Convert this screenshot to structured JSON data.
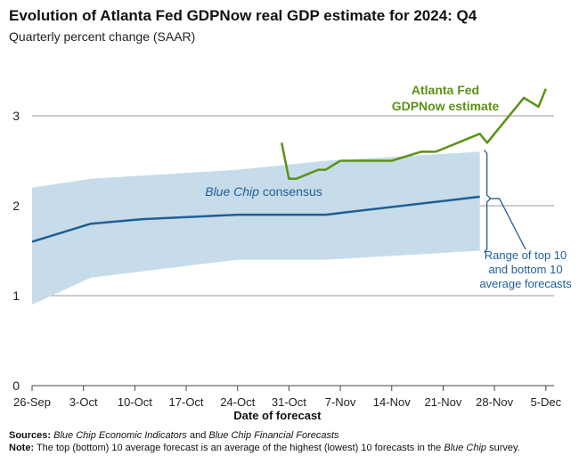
{
  "title": "Evolution of Atlanta Fed GDPNow real GDP estimate for 2024: Q4",
  "subtitle": "Quarterly percent change (SAAR)",
  "colors": {
    "gdpnow": "#5b9214",
    "bluechip": "#1f5f97",
    "band": "#c6dcea",
    "grid": "#9a9a9a",
    "annotation": "#1f5f97"
  },
  "chart_data": {
    "type": "line",
    "xlabel": "Date of forecast",
    "ylabel": "",
    "ylim": [
      0,
      3.5
    ],
    "yticks": [
      0,
      1,
      2,
      3
    ],
    "xlim": [
      "2024-09-26",
      "2024-12-06"
    ],
    "xticks": [
      {
        "date": "2024-09-26",
        "label": "26-Sep"
      },
      {
        "date": "2024-10-03",
        "label": "3-Oct"
      },
      {
        "date": "2024-10-10",
        "label": "10-Oct"
      },
      {
        "date": "2024-10-17",
        "label": "17-Oct"
      },
      {
        "date": "2024-10-24",
        "label": "24-Oct"
      },
      {
        "date": "2024-10-31",
        "label": "31-Oct"
      },
      {
        "date": "2024-11-07",
        "label": "7-Nov"
      },
      {
        "date": "2024-11-14",
        "label": "14-Nov"
      },
      {
        "date": "2024-11-21",
        "label": "21-Nov"
      },
      {
        "date": "2024-11-28",
        "label": "28-Nov"
      },
      {
        "date": "2024-12-05",
        "label": "5-Dec"
      }
    ],
    "grid": true,
    "series": [
      {
        "name": "Atlanta Fed GDPNow estimate",
        "label_lines": [
          "Atlanta Fed",
          "GDPNow estimate"
        ],
        "points": [
          [
            "2024-10-30",
            2.7
          ],
          [
            "2024-10-31",
            2.3
          ],
          [
            "2024-11-01",
            2.3
          ],
          [
            "2024-11-04",
            2.4
          ],
          [
            "2024-11-05",
            2.4
          ],
          [
            "2024-11-07",
            2.5
          ],
          [
            "2024-11-14",
            2.5
          ],
          [
            "2024-11-18",
            2.6
          ],
          [
            "2024-11-20",
            2.6
          ],
          [
            "2024-11-26",
            2.8
          ],
          [
            "2024-11-27",
            2.7
          ],
          [
            "2024-12-02",
            3.2
          ],
          [
            "2024-12-04",
            3.1
          ],
          [
            "2024-12-05",
            3.3
          ]
        ]
      },
      {
        "name": "Blue Chip consensus",
        "label_italic": "Blue Chip",
        "label_rest": " consensus",
        "points": [
          [
            "2024-09-26",
            1.6
          ],
          [
            "2024-10-04",
            1.8
          ],
          [
            "2024-10-11",
            1.85
          ],
          [
            "2024-10-24",
            1.9
          ],
          [
            "2024-11-05",
            1.9
          ],
          [
            "2024-11-26",
            2.1
          ]
        ]
      }
    ],
    "band": {
      "name": "Range of top 10 and bottom 10 average forecasts",
      "upper": [
        [
          "2024-09-26",
          2.2
        ],
        [
          "2024-10-04",
          2.3
        ],
        [
          "2024-10-24",
          2.4
        ],
        [
          "2024-11-05",
          2.5
        ],
        [
          "2024-11-26",
          2.6
        ]
      ],
      "lower": [
        [
          "2024-09-26",
          0.9
        ],
        [
          "2024-10-04",
          1.2
        ],
        [
          "2024-10-24",
          1.4
        ],
        [
          "2024-11-05",
          1.4
        ],
        [
          "2024-11-26",
          1.5
        ]
      ]
    },
    "annotation_lines": [
      "Range of top 10",
      "and bottom 10",
      "average forecasts"
    ]
  },
  "footer": {
    "sources_label": "Sources:",
    "sources_text_1": "Blue Chip Economic Indicators",
    "sources_and": " and ",
    "sources_text_2": "Blue Chip Financial Forecasts",
    "note_label": "Note:",
    "note_text_1": " The top (bottom) 10 average forecast is an average of the highest (lowest) 10 forecasts in the ",
    "note_italic": "Blue Chip",
    "note_text_2": " survey."
  }
}
